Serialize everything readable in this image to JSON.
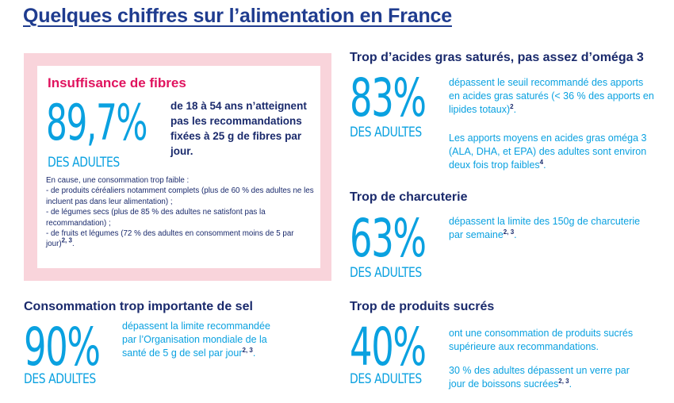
{
  "title": "Quelques chiffres sur l’alimentation en France",
  "fibres": {
    "heading": "Insuffisance de fibres",
    "percent": "89,7%",
    "adults": "DES ADULTES",
    "desc": "de 18 à 54 ans n’atteignent pas les recommandations fixées à 25 g de fibres par jour.",
    "details_intro": "En cause, une consommation trop faible :",
    "details_1": "- de produits céréaliers notamment complets (plus de 60 % des adultes ne les incluent pas dans leur alimentation) ;",
    "details_2": "- de légumes secs (plus de 85 % des adultes ne satisfont pas la recommandation) ;",
    "details_3": "- de fruits et légumes (72 % des adultes en consomment moins de 5 par jour)",
    "details_3_ref": "2, 3",
    "details_3_end": "."
  },
  "fats": {
    "heading": "Trop d’acides gras saturés, pas assez d’oméga 3",
    "percent": "83%",
    "adults": "DES ADULTES",
    "desc1": "dépassent le seuil recommandé des apports en acides gras saturés (< 36 % des apports en lipides totaux)",
    "desc1_ref": "2",
    "desc1_end": ".",
    "desc2": "Les apports moyens en acides gras oméga 3 (ALA, DHA, et EPA) des adultes sont environ deux fois trop faibles",
    "desc2_ref": "4",
    "desc2_end": "."
  },
  "charcuterie": {
    "heading": "Trop de charcuterie",
    "percent": "63%",
    "adults": "DES ADULTES",
    "desc": "dépassent la limite des 150g de charcuterie par semaine",
    "desc_ref": "2, 3",
    "desc_end": "."
  },
  "salt": {
    "heading": "Consommation trop importante de sel",
    "percent": "90%",
    "adults": "DES ADULTES",
    "desc": "dépassent la limite recommandée par l’Organisation mondiale de la santé de 5 g de sel par jour",
    "desc_ref": "2, 3",
    "desc_end": "."
  },
  "sugar": {
    "heading": "Trop de produits sucrés",
    "percent": "40%",
    "adults": "DES ADULTES",
    "desc1": "ont une consommation de produits sucrés supérieure aux recommandations.",
    "desc2": "30 % des adultes dépassent un verre par jour de boissons sucrées",
    "desc2_ref": "2, 3",
    "desc2_end": "."
  }
}
